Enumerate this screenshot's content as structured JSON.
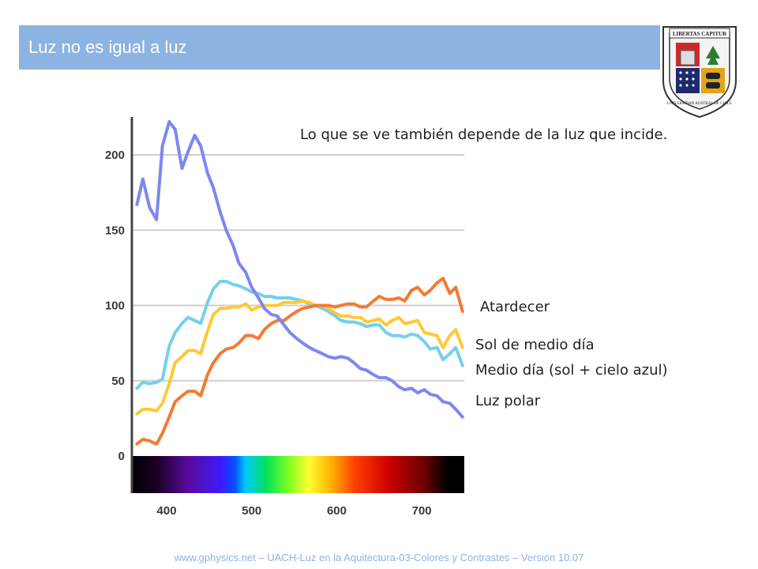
{
  "slide": {
    "title": "Luz no es igual a luz",
    "caption": "Lo que se ve también depende de la luz que incide.",
    "footer": "www.gphysics.net – UACH-Luz en la Aquitectura-03-Colores y Contrastes – Versión 10.07",
    "emblem": {
      "banner": "LIBERTAS CAPITUR",
      "motto": "UNIVERSIDAD AUSTRAL DE CHILE"
    }
  },
  "colors": {
    "title_bar": "#8db3e2",
    "atardecer": "#f47a33",
    "sol_medio_dia": "#ffc933",
    "medio_dia_cielo": "#74cfef",
    "luz_polar": "#7d87f0"
  },
  "chart_data": {
    "type": "line",
    "title": "",
    "xlabel": "",
    "ylabel": "",
    "xlim": [
      360,
      750
    ],
    "ylim": [
      0,
      230
    ],
    "xticks": [
      "400",
      "500",
      "600",
      "700"
    ],
    "yticks": [
      "0",
      "50",
      "100",
      "150",
      "200"
    ],
    "grid": "horizontal",
    "legend_placement": "right",
    "x": [
      365,
      372,
      380,
      388,
      395,
      403,
      410,
      418,
      425,
      433,
      440,
      448,
      455,
      463,
      470,
      478,
      485,
      493,
      500,
      508,
      515,
      523,
      530,
      538,
      545,
      553,
      560,
      568,
      575,
      583,
      590,
      598,
      605,
      613,
      620,
      628,
      635,
      643,
      650,
      658,
      665,
      673,
      680,
      688,
      695,
      703,
      710,
      718,
      725,
      733,
      740,
      748
    ],
    "series": [
      {
        "name": "Atardecer",
        "values": [
          8,
          11,
          10,
          8,
          15,
          26,
          36,
          40,
          43,
          43,
          40,
          54,
          62,
          68,
          71,
          72,
          75,
          80,
          80,
          78,
          84,
          88,
          90,
          90,
          93,
          96,
          98,
          99,
          100,
          100,
          100,
          99,
          100,
          101,
          101,
          99,
          99,
          103,
          106,
          104,
          104,
          105,
          103,
          110,
          112,
          107,
          110,
          115,
          118,
          108,
          112,
          96
        ]
      },
      {
        "name": "Sol de medio día",
        "values": [
          28,
          31,
          31,
          30,
          35,
          48,
          62,
          66,
          70,
          70,
          68,
          83,
          94,
          98,
          98,
          99,
          99,
          101,
          97,
          99,
          100,
          100,
          100,
          102,
          102,
          102,
          103,
          102,
          100,
          100,
          98,
          95,
          93,
          93,
          92,
          92,
          89,
          90,
          91,
          87,
          90,
          92,
          88,
          89,
          90,
          82,
          81,
          80,
          72,
          80,
          84,
          72
        ]
      },
      {
        "name": "Medio día (sol + cielo azul)",
        "values": [
          45,
          49,
          48,
          49,
          51,
          73,
          82,
          88,
          92,
          90,
          88,
          102,
          111,
          116,
          116,
          114,
          113,
          111,
          109,
          108,
          106,
          106,
          105,
          105,
          105,
          104,
          103,
          101,
          100,
          98,
          96,
          93,
          90,
          89,
          89,
          88,
          86,
          87,
          87,
          82,
          80,
          80,
          79,
          81,
          80,
          76,
          71,
          72,
          64,
          68,
          72,
          60
        ]
      },
      {
        "name": "Luz polar",
        "values": [
          167,
          184,
          165,
          157,
          206,
          222,
          217,
          191,
          202,
          213,
          206,
          188,
          178,
          162,
          150,
          140,
          128,
          122,
          112,
          105,
          98,
          94,
          93,
          87,
          82,
          78,
          75,
          72,
          70,
          68,
          66,
          65,
          66,
          65,
          62,
          58,
          57,
          54,
          52,
          52,
          50,
          46,
          44,
          45,
          42,
          44,
          41,
          40,
          36,
          35,
          31,
          26
        ]
      }
    ],
    "legend_entries": [
      "Atardecer",
      "Sol de medio día",
      "Medio día (sol + cielo azul)",
      "Luz polar"
    ]
  }
}
